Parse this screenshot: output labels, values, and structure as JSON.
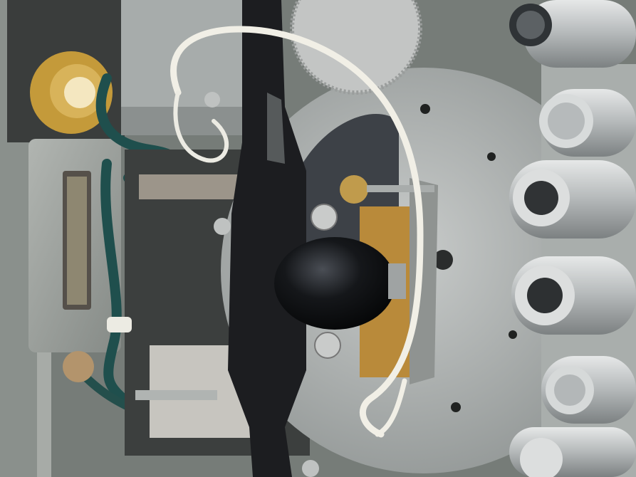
{
  "photo": {
    "subject": "",
    "colors": {
      "chassis": "#9ea39f",
      "bracket": "#1c1d20",
      "disc": "#b9bcbb",
      "wire_white": "#f1efe6",
      "wire_green": "#1f4f4d",
      "brass": "#b98a3a",
      "knob": "#111316",
      "tube": "#c9cccb"
    }
  }
}
